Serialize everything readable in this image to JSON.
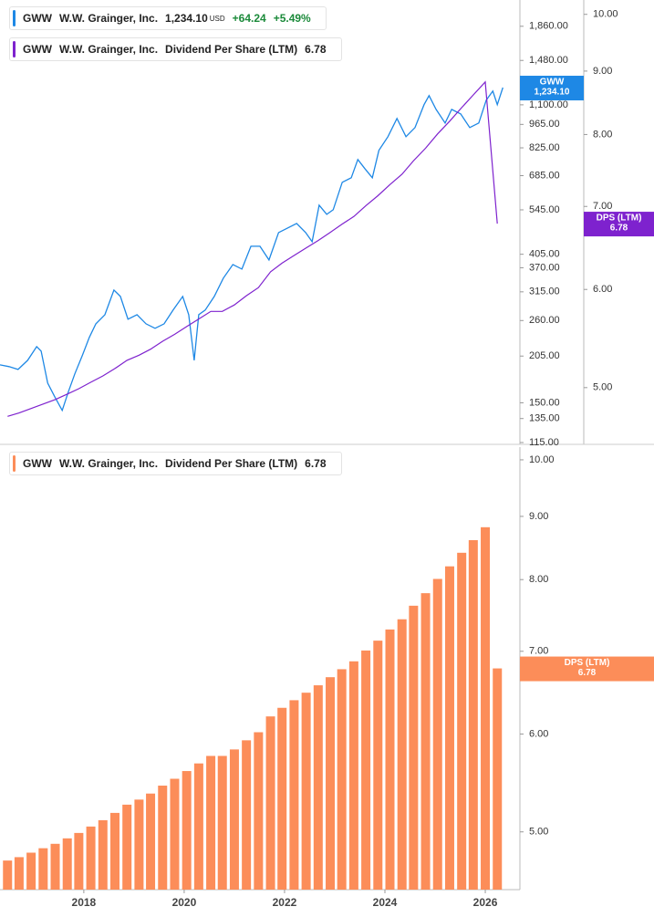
{
  "chart_data": [
    {
      "type": "line",
      "xlim": [
        2016.33,
        2026.69
      ],
      "ylim": [
        113.6,
        2217
      ],
      "log_y": true,
      "yticks": [
        {
          "value": 1860,
          "label": "1,860.00"
        },
        {
          "value": 1480,
          "label": "1,480.00"
        },
        {
          "value": 1100,
          "label": "1,100.00"
        },
        {
          "value": 965,
          "label": "965.00"
        },
        {
          "value": 825,
          "label": "825.00"
        },
        {
          "value": 685,
          "label": "685.00"
        },
        {
          "value": 545,
          "label": "545.00"
        },
        {
          "value": 405,
          "label": "405.00"
        },
        {
          "value": 370,
          "label": "370.00"
        },
        {
          "value": 315,
          "label": "315.00"
        },
        {
          "value": 260,
          "label": "260.00"
        },
        {
          "value": 205,
          "label": "205.00"
        },
        {
          "value": 150,
          "label": "150.00"
        },
        {
          "value": 135,
          "label": "135.00"
        },
        {
          "value": 115,
          "label": "115.00"
        }
      ],
      "y2lim": [
        4.5,
        10.27
      ],
      "y2ticks": [
        {
          "value": 10,
          "label": "10.00"
        },
        {
          "value": 9,
          "label": "9.00"
        },
        {
          "value": 8,
          "label": "8.00"
        },
        {
          "value": 7,
          "label": "7.00"
        },
        {
          "value": 6,
          "label": "6.00"
        },
        {
          "value": 5,
          "label": "5.00"
        }
      ],
      "series": [
        {
          "name": "W.W. Grainger, Inc.",
          "ticker": "GWW",
          "color": "#1e88e5",
          "last_label": "1,234.10",
          "currency": "USD",
          "change": "+64.24",
          "change_pct": "+5.49%",
          "x": [
            2016.33,
            2016.51,
            2016.69,
            2016.88,
            2017.06,
            2017.15,
            2017.28,
            2017.42,
            2017.57,
            2017.69,
            2017.82,
            2017.97,
            2018.11,
            2018.24,
            2018.42,
            2018.6,
            2018.73,
            2018.88,
            2019.06,
            2019.24,
            2019.42,
            2019.6,
            2019.78,
            2019.97,
            2020.09,
            2020.2,
            2020.29,
            2020.42,
            2020.6,
            2020.78,
            2020.97,
            2021.15,
            2021.33,
            2021.51,
            2021.69,
            2021.88,
            2022.06,
            2022.24,
            2022.42,
            2022.55,
            2022.69,
            2022.84,
            2022.97,
            2023.15,
            2023.33,
            2023.46,
            2023.6,
            2023.75,
            2023.88,
            2024.06,
            2024.24,
            2024.42,
            2024.6,
            2024.78,
            2024.88,
            2025.02,
            2025.2,
            2025.33,
            2025.51,
            2025.69,
            2025.87,
            2026.02,
            2026.15,
            2026.24,
            2026.35
          ],
          "values": [
            193.3,
            191.0,
            187.5,
            199.3,
            218.4,
            211.9,
            171.1,
            156.2,
            142.5,
            161.0,
            181.9,
            205.5,
            232.2,
            254.4,
            270.4,
            318.8,
            305.5,
            262.3,
            270.4,
            254.4,
            246.8,
            254.4,
            278.8,
            305.5,
            270.4,
            199.3,
            270.4,
            278.8,
            305.5,
            345.1,
            378.2,
            366.8,
            427.2,
            427.2,
            389.9,
            468.2,
            482.7,
            497.6,
            468.2,
            440.4,
            562.3,
            529.0,
            545.4,
            655.3,
            675.6,
            763.3,
            718.1,
            675.6,
            811.3,
            888.9,
            1004,
            888.9,
            944.9,
            1101,
            1170,
            1067,
            974.3,
            1067,
            1035,
            944.9,
            974.3,
            1135,
            1206,
            1101,
            1234.1
          ]
        },
        {
          "name": "W.W. Grainger, Inc.",
          "ticker": "GWW",
          "indicator": "Dividend Per Share (LTM)",
          "badge": "DPS (LTM)",
          "color": "#7e22ce",
          "last_label": "6.78",
          "axis": "y2",
          "x": [
            2016.48,
            2016.71,
            2016.95,
            2017.19,
            2017.43,
            2017.67,
            2017.9,
            2018.14,
            2018.38,
            2018.62,
            2018.86,
            2019.1,
            2019.33,
            2019.57,
            2019.81,
            2020.05,
            2020.29,
            2020.53,
            2020.76,
            2021.0,
            2021.24,
            2021.48,
            2021.72,
            2021.95,
            2022.19,
            2022.43,
            2022.67,
            2022.91,
            2023.14,
            2023.38,
            2023.62,
            2023.86,
            2024.1,
            2024.34,
            2024.57,
            2024.81,
            2025.05,
            2025.29,
            2025.53,
            2025.76,
            2026.0,
            2026.24
          ],
          "values": [
            4.74,
            4.77,
            4.81,
            4.85,
            4.89,
            4.94,
            4.99,
            5.05,
            5.11,
            5.18,
            5.26,
            5.31,
            5.37,
            5.45,
            5.52,
            5.6,
            5.68,
            5.76,
            5.76,
            5.83,
            5.93,
            6.02,
            6.2,
            6.3,
            6.39,
            6.48,
            6.57,
            6.67,
            6.77,
            6.87,
            7.01,
            7.14,
            7.29,
            7.43,
            7.62,
            7.8,
            8.01,
            8.2,
            8.41,
            8.61,
            8.82,
            6.78
          ]
        }
      ]
    },
    {
      "type": "bar",
      "xlim": [
        2016.33,
        2026.69
      ],
      "xticks": [
        2018,
        2020,
        2022,
        2024,
        2026
      ],
      "ylim": [
        4.49,
        10.24
      ],
      "log_y": true,
      "yticks": [
        {
          "value": 10,
          "label": "10.00"
        },
        {
          "value": 9,
          "label": "9.00"
        },
        {
          "value": 8,
          "label": "8.00"
        },
        {
          "value": 7,
          "label": "7.00"
        },
        {
          "value": 6,
          "label": "6.00"
        },
        {
          "value": 5,
          "label": "5.00"
        }
      ],
      "series": [
        {
          "name": "W.W. Grainger, Inc.",
          "ticker": "GWW",
          "indicator": "Dividend Per Share (LTM)",
          "badge": "DPS (LTM)",
          "color": "#fc8d59",
          "last_label": "6.78",
          "x": [
            2016.48,
            2016.71,
            2016.95,
            2017.19,
            2017.43,
            2017.67,
            2017.9,
            2018.14,
            2018.38,
            2018.62,
            2018.86,
            2019.1,
            2019.33,
            2019.57,
            2019.81,
            2020.05,
            2020.29,
            2020.53,
            2020.76,
            2021.0,
            2021.24,
            2021.48,
            2021.72,
            2021.95,
            2022.19,
            2022.43,
            2022.67,
            2022.91,
            2023.14,
            2023.38,
            2023.62,
            2023.86,
            2024.1,
            2024.34,
            2024.57,
            2024.81,
            2025.05,
            2025.29,
            2025.53,
            2025.76,
            2026.0,
            2026.24
          ],
          "values": [
            4.74,
            4.77,
            4.81,
            4.85,
            4.89,
            4.94,
            4.99,
            5.05,
            5.11,
            5.18,
            5.26,
            5.31,
            5.37,
            5.45,
            5.52,
            5.6,
            5.68,
            5.76,
            5.76,
            5.83,
            5.93,
            6.02,
            6.2,
            6.3,
            6.39,
            6.48,
            6.57,
            6.67,
            6.77,
            6.87,
            7.01,
            7.14,
            7.29,
            7.43,
            7.62,
            7.8,
            8.01,
            8.2,
            8.41,
            8.61,
            8.82,
            6.78
          ]
        }
      ]
    }
  ]
}
